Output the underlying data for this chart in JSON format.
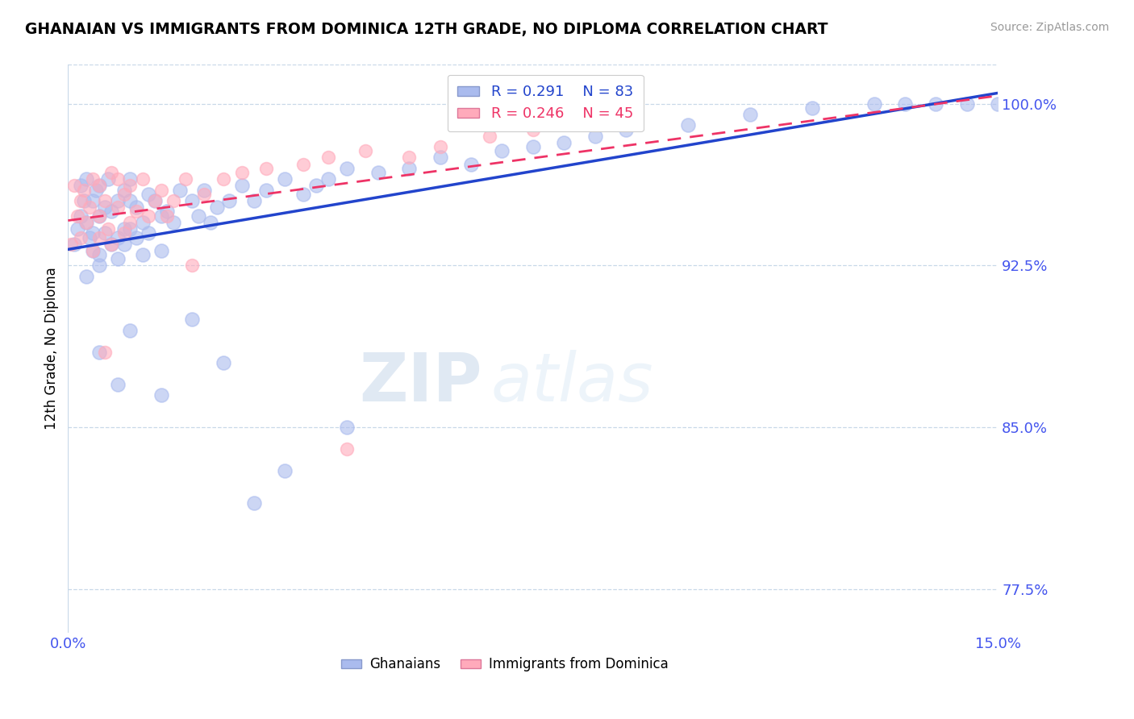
{
  "title": "GHANAIAN VS IMMIGRANTS FROM DOMINICA 12TH GRADE, NO DIPLOMA CORRELATION CHART",
  "source": "Source: ZipAtlas.com",
  "ylabel": "12th Grade, No Diploma",
  "xlim": [
    0.0,
    15.0
  ],
  "ylim": [
    75.5,
    101.8
  ],
  "yticks": [
    77.5,
    85.0,
    92.5,
    100.0
  ],
  "ytick_labels": [
    "77.5%",
    "85.0%",
    "92.5%",
    "100.0%"
  ],
  "xticks": [
    0.0,
    15.0
  ],
  "xtick_labels": [
    "0.0%",
    "15.0%"
  ],
  "legend_r1": "R = 0.291",
  "legend_n1": "N = 83",
  "legend_r2": "R = 0.246",
  "legend_n2": "N = 45",
  "color_blue": "#aabbee",
  "color_pink": "#ffaabb",
  "color_blue_line": "#2244cc",
  "color_pink_line": "#ee3366",
  "color_axis_label": "#4455ee",
  "watermark_zip": "ZIP",
  "watermark_atlas": "atlas",
  "ghanaian_x": [
    0.1,
    0.15,
    0.2,
    0.2,
    0.25,
    0.3,
    0.3,
    0.3,
    0.35,
    0.4,
    0.4,
    0.4,
    0.45,
    0.5,
    0.5,
    0.5,
    0.5,
    0.6,
    0.6,
    0.65,
    0.7,
    0.7,
    0.8,
    0.8,
    0.8,
    0.9,
    0.9,
    0.9,
    1.0,
    1.0,
    1.0,
    1.1,
    1.1,
    1.2,
    1.2,
    1.3,
    1.3,
    1.4,
    1.5,
    1.5,
    1.6,
    1.7,
    1.8,
    2.0,
    2.1,
    2.2,
    2.3,
    2.4,
    2.6,
    2.8,
    3.0,
    3.2,
    3.5,
    3.8,
    4.0,
    4.2,
    4.5,
    5.0,
    5.5,
    6.0,
    6.5,
    7.0,
    7.5,
    8.0,
    8.5,
    9.0,
    10.0,
    11.0,
    12.0,
    13.0,
    13.5,
    14.0,
    14.5,
    15.0,
    0.5,
    0.8,
    1.0,
    1.5,
    2.0,
    2.5,
    3.0,
    3.5,
    4.5
  ],
  "ghanaian_y": [
    93.5,
    94.2,
    94.8,
    96.2,
    95.5,
    92.0,
    94.5,
    96.5,
    93.8,
    94.0,
    95.5,
    93.2,
    96.0,
    92.5,
    94.8,
    96.2,
    93.0,
    95.2,
    94.0,
    96.5,
    93.5,
    95.0,
    93.8,
    95.5,
    92.8,
    94.2,
    96.0,
    93.5,
    95.5,
    94.2,
    96.5,
    93.8,
    95.2,
    94.5,
    93.0,
    95.8,
    94.0,
    95.5,
    94.8,
    93.2,
    95.0,
    94.5,
    96.0,
    95.5,
    94.8,
    96.0,
    94.5,
    95.2,
    95.5,
    96.2,
    95.5,
    96.0,
    96.5,
    95.8,
    96.2,
    96.5,
    97.0,
    96.8,
    97.0,
    97.5,
    97.2,
    97.8,
    98.0,
    98.2,
    98.5,
    98.8,
    99.0,
    99.5,
    99.8,
    100.0,
    100.0,
    100.0,
    100.0,
    100.0,
    88.5,
    87.0,
    89.5,
    86.5,
    90.0,
    88.0,
    81.5,
    83.0,
    85.0
  ],
  "dominica_x": [
    0.05,
    0.1,
    0.15,
    0.2,
    0.2,
    0.25,
    0.3,
    0.35,
    0.4,
    0.4,
    0.5,
    0.5,
    0.5,
    0.6,
    0.65,
    0.7,
    0.7,
    0.8,
    0.8,
    0.9,
    0.9,
    1.0,
    1.0,
    1.1,
    1.2,
    1.3,
    1.4,
    1.5,
    1.6,
    1.7,
    1.9,
    2.2,
    2.5,
    2.8,
    3.2,
    3.8,
    4.2,
    4.8,
    5.5,
    6.0,
    6.8,
    7.5,
    4.5,
    2.0,
    0.6
  ],
  "dominica_y": [
    93.5,
    96.2,
    94.8,
    95.5,
    93.8,
    96.0,
    94.5,
    95.2,
    96.5,
    93.2,
    94.8,
    96.2,
    93.8,
    95.5,
    94.2,
    96.8,
    93.5,
    95.2,
    96.5,
    94.0,
    95.8,
    96.2,
    94.5,
    95.0,
    96.5,
    94.8,
    95.5,
    96.0,
    94.8,
    95.5,
    96.5,
    95.8,
    96.5,
    96.8,
    97.0,
    97.2,
    97.5,
    97.8,
    97.5,
    98.0,
    98.5,
    98.8,
    84.0,
    92.5,
    88.5
  ]
}
